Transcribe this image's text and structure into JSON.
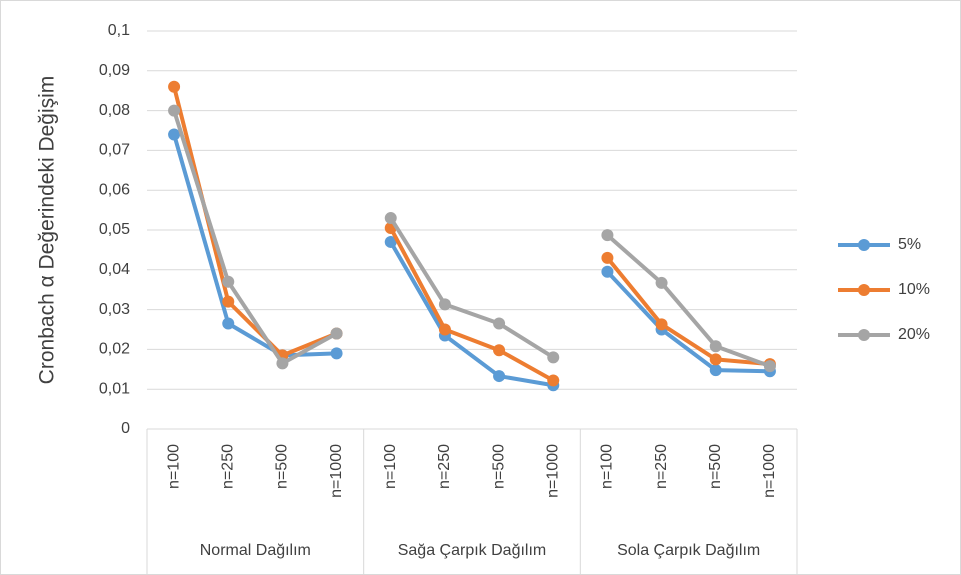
{
  "chart_data": {
    "type": "line",
    "y_label": "Cronbach α Değerindeki Değişim",
    "groups": [
      {
        "name": "Normal Dağılım",
        "categories": [
          "n=100",
          "n=250",
          "n=500",
          "n=1000"
        ]
      },
      {
        "name": "Sağa Çarpık Dağılım",
        "categories": [
          "n=100",
          "n=250",
          "n=500",
          "n=1000"
        ]
      },
      {
        "name": "Sola Çarpık Dağılım",
        "categories": [
          "n=100",
          "n=250",
          "n=500",
          "n=1000"
        ]
      }
    ],
    "series": [
      {
        "name": "5%",
        "color": "#5b9bd5",
        "values": [
          [
            0.074,
            0.0265,
            0.0185,
            0.019
          ],
          [
            0.047,
            0.0235,
            0.0133,
            0.011
          ],
          [
            0.0395,
            0.025,
            0.0148,
            0.0145
          ]
        ]
      },
      {
        "name": "10%",
        "color": "#ed7d31",
        "values": [
          [
            0.086,
            0.032,
            0.0185,
            0.024
          ],
          [
            0.0505,
            0.025,
            0.0198,
            0.0122
          ],
          [
            0.043,
            0.0263,
            0.0175,
            0.0163
          ]
        ]
      },
      {
        "name": "20%",
        "color": "#a5a5a5",
        "values": [
          [
            0.08,
            0.037,
            0.0165,
            0.024
          ],
          [
            0.053,
            0.0313,
            0.0265,
            0.018
          ],
          [
            0.0487,
            0.0367,
            0.0208,
            0.0158
          ]
        ]
      }
    ],
    "ylim": [
      0,
      0.1
    ],
    "yticks": [
      0,
      {
        "value": 0.01,
        "label": "0,01"
      },
      {
        "value": 0.02,
        "label": "0,02"
      },
      {
        "value": 0.03,
        "label": "0,03"
      },
      {
        "value": 0.04,
        "label": "0,04"
      },
      {
        "value": 0.05,
        "label": "0,05"
      },
      {
        "value": 0.06,
        "label": "0,06"
      },
      {
        "value": 0.07,
        "label": "0,07"
      },
      {
        "value": 0.08,
        "label": "0,08"
      },
      {
        "value": 0.09,
        "label": "0,09"
      },
      {
        "value": 0.1,
        "label": "0,1"
      }
    ],
    "grid": true,
    "legend": "right"
  }
}
